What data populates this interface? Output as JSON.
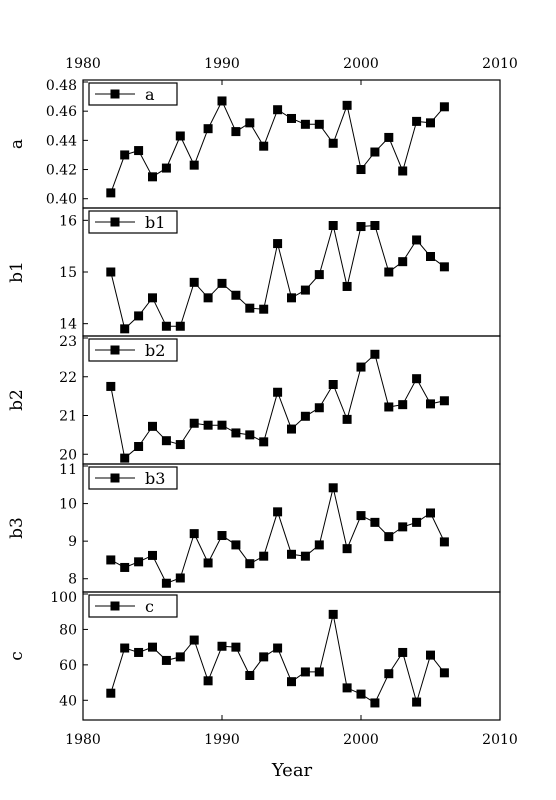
{
  "chart_data": {
    "type": "line",
    "xlabel": "Year",
    "xlim": [
      1980,
      2010
    ],
    "xticks": [
      1980,
      1990,
      2000,
      2010
    ],
    "x": [
      1982,
      1983,
      1984,
      1985,
      1986,
      1987,
      1988,
      1989,
      1990,
      1991,
      1992,
      1993,
      1994,
      1995,
      1996,
      1997,
      1998,
      1999,
      2000,
      2001,
      2002,
      2003,
      2004,
      2005,
      2006
    ],
    "panels": [
      {
        "ylabel": "a",
        "legend": "a",
        "ylim": [
          0.395,
          0.48
        ],
        "yticks": [
          "0.40",
          "0.42",
          "0.44",
          "0.46",
          "0.48"
        ],
        "yticks_values": [
          0.4,
          0.42,
          0.44,
          0.46,
          0.48
        ],
        "values": [
          0.404,
          0.43,
          0.433,
          0.415,
          0.421,
          0.443,
          0.423,
          0.448,
          0.467,
          0.446,
          0.452,
          0.436,
          0.461,
          0.455,
          0.451,
          0.451,
          0.438,
          0.464,
          0.42,
          0.432,
          0.442,
          0.419,
          0.453,
          0.452,
          0.463
        ]
      },
      {
        "ylabel": "b1",
        "legend": "b1",
        "ylim": [
          13.8,
          16.2
        ],
        "yticks": [
          "14",
          "15",
          "16"
        ],
        "yticks_values": [
          14,
          15,
          16
        ],
        "values": [
          15.0,
          13.9,
          14.15,
          14.5,
          13.95,
          13.95,
          14.8,
          14.5,
          14.78,
          14.55,
          14.3,
          14.28,
          15.55,
          14.5,
          14.65,
          14.95,
          15.9,
          14.72,
          15.88,
          15.9,
          15.0,
          15.2,
          15.62,
          15.3,
          15.1
        ]
      },
      {
        "ylabel": "b2",
        "legend": "b2",
        "ylim": [
          19.8,
          23.0
        ],
        "yticks": [
          "20",
          "21",
          "22",
          "23"
        ],
        "yticks_values": [
          20,
          21,
          22,
          23
        ],
        "values": [
          21.75,
          19.9,
          20.2,
          20.72,
          20.35,
          20.25,
          20.8,
          20.75,
          20.75,
          20.55,
          20.5,
          20.32,
          21.6,
          20.65,
          20.98,
          21.2,
          21.8,
          20.9,
          22.25,
          22.58,
          21.22,
          21.28,
          21.95,
          21.3,
          21.38
        ]
      },
      {
        "ylabel": "b3",
        "legend": "b3",
        "ylim": [
          7.7,
          11.0
        ],
        "yticks": [
          "8",
          "9",
          "10",
          "11"
        ],
        "yticks_values": [
          8,
          9,
          10,
          11
        ],
        "values": [
          8.5,
          8.3,
          8.45,
          8.62,
          7.88,
          8.02,
          9.2,
          8.42,
          9.15,
          8.9,
          8.4,
          8.6,
          9.78,
          8.65,
          8.6,
          8.9,
          10.42,
          8.8,
          9.68,
          9.5,
          9.12,
          9.38,
          9.5,
          9.75,
          8.98
        ]
      },
      {
        "ylabel": "c",
        "legend": "c",
        "ylim": [
          30,
          100
        ],
        "yticks": [
          "40",
          "60",
          "80",
          "100"
        ],
        "yticks_values": [
          40,
          60,
          80,
          100
        ],
        "values": [
          44,
          69.5,
          67,
          70,
          62.5,
          64.5,
          74,
          51,
          70.5,
          70,
          54,
          64.5,
          69.5,
          50.5,
          56,
          56,
          88.5,
          47,
          43.5,
          38.5,
          55,
          67,
          39,
          65.5,
          55.5
        ]
      }
    ],
    "marker": "square",
    "line_color": "#000000",
    "grid": false,
    "legend_position": "top-left"
  }
}
